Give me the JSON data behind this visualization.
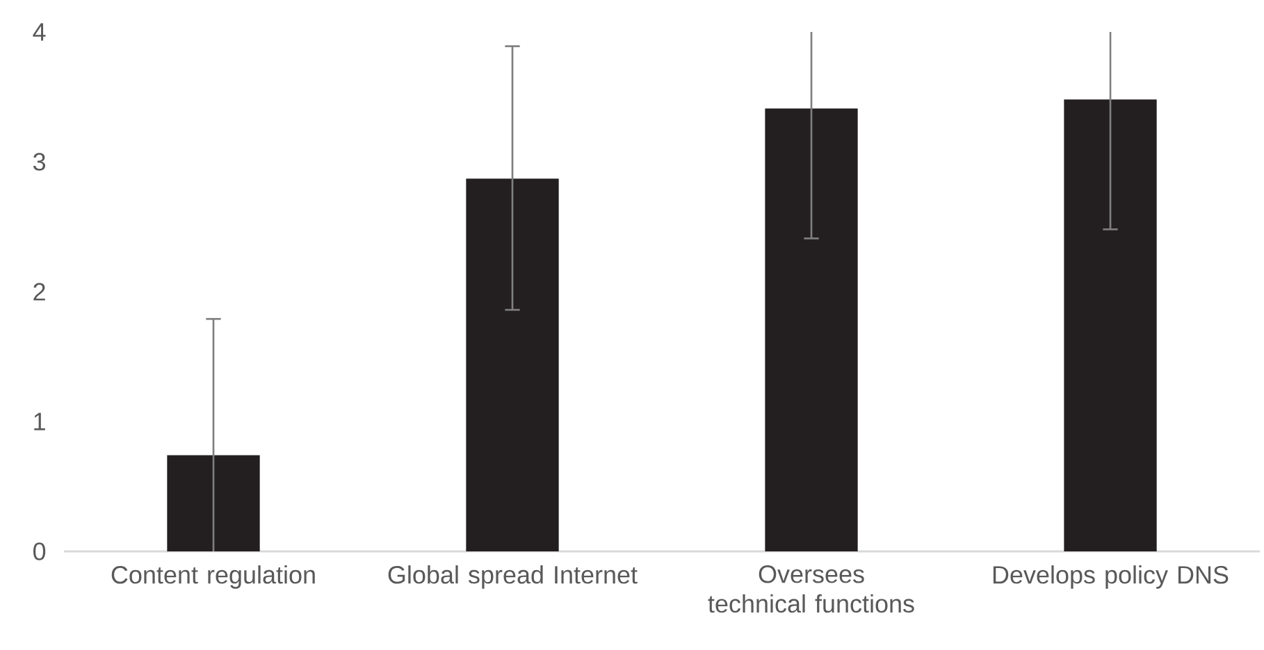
{
  "chart_data": {
    "type": "bar",
    "categories": [
      "Content regulation",
      "Global spread Internet",
      "Oversees technical functions",
      "Develops policy DNS"
    ],
    "values": [
      0.74,
      2.87,
      3.41,
      3.48
    ],
    "errors": [
      [
        0,
        1.79
      ],
      [
        1.86,
        3.89
      ],
      [
        2.41,
        4
      ],
      [
        2.48,
        4
      ]
    ],
    "color": "#231f20",
    "ylim": [
      0,
      4
    ],
    "yticks": [
      0,
      1,
      2,
      3,
      4
    ],
    "grid": false
  }
}
